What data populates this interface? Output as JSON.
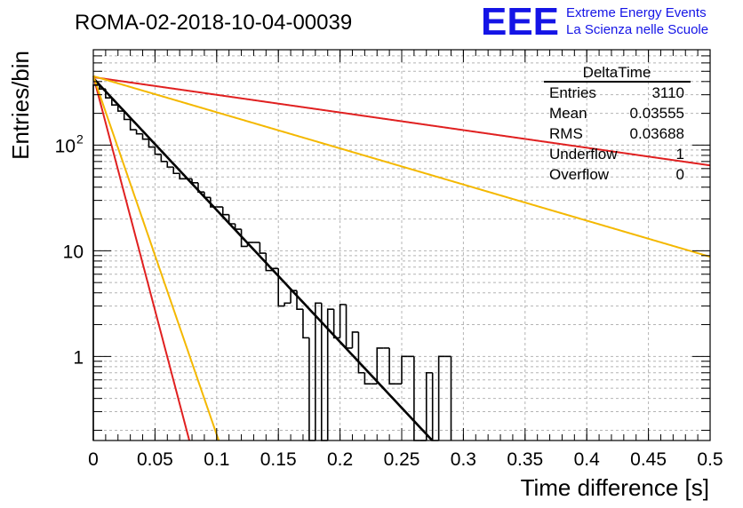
{
  "chart_data": {
    "type": "histogram",
    "title": "ROMA-02-2018-10-04-00039",
    "xlabel": "Time difference [s]",
    "ylabel": "Entries/bin",
    "xlim": [
      0,
      0.5
    ],
    "ylim": [
      0.16,
      800
    ],
    "yscale": "log",
    "grid": true,
    "x_ticks": [
      "0",
      "0.05",
      "0.1",
      "0.15",
      "0.2",
      "0.25",
      "0.3",
      "0.35",
      "0.4",
      "0.45",
      "0.5"
    ],
    "y_ticks": [
      {
        "value": 1,
        "label": "1",
        "sup": ""
      },
      {
        "value": 10,
        "label": "10",
        "sup": ""
      },
      {
        "value": 100,
        "label": "10",
        "sup": "2"
      }
    ],
    "histogram": {
      "bin_width": 0.005,
      "counts": [
        370,
        340,
        280,
        240,
        210,
        175,
        140,
        128,
        114,
        96,
        82,
        70,
        62,
        54,
        48,
        48,
        44,
        36,
        32,
        26,
        26,
        22,
        18,
        16,
        11,
        12,
        12,
        9.5,
        6.5,
        6.8,
        3,
        3.2,
        4.2,
        2.8,
        1.5,
        0.1,
        3.2,
        0.1,
        2.8,
        1.5,
        3.1,
        1.2,
        1.7,
        0.7,
        0.55,
        0.55,
        1.2,
        1.2,
        0.55,
        0.55,
        1.0,
        1.0,
        0.1,
        0.1,
        0.7,
        0.1,
        1.0,
        1.0
      ]
    },
    "fits": [
      {
        "name": "fit",
        "color": "#000000",
        "A": 430,
        "tau": 0.0348
      },
      {
        "name": "reference-slow-red",
        "color": "#e02020",
        "A": 440,
        "tau": 0.26
      },
      {
        "name": "reference-slow-yellow",
        "color": "#f4b800",
        "A": 450,
        "tau": 0.127
      },
      {
        "name": "reference-fast-red",
        "color": "#e02020",
        "A": 450,
        "tau": 0.0098
      },
      {
        "name": "reference-fast-yellow",
        "color": "#f4b800",
        "A": 450,
        "tau": 0.0128
      }
    ],
    "stats": {
      "title": "DeltaTime",
      "rows": [
        {
          "label": "Entries",
          "value": "3110"
        },
        {
          "label": "Mean",
          "value": "0.03555"
        },
        {
          "label": "RMS",
          "value": "0.03688"
        },
        {
          "label": "Underflow",
          "value": "1"
        },
        {
          "label": "Overflow",
          "value": "0"
        }
      ]
    }
  },
  "logo": {
    "text": "EEE",
    "line1": "Extreme Energy Events",
    "line2": "La Scienza nelle Scuole",
    "color": "#1414e6"
  }
}
